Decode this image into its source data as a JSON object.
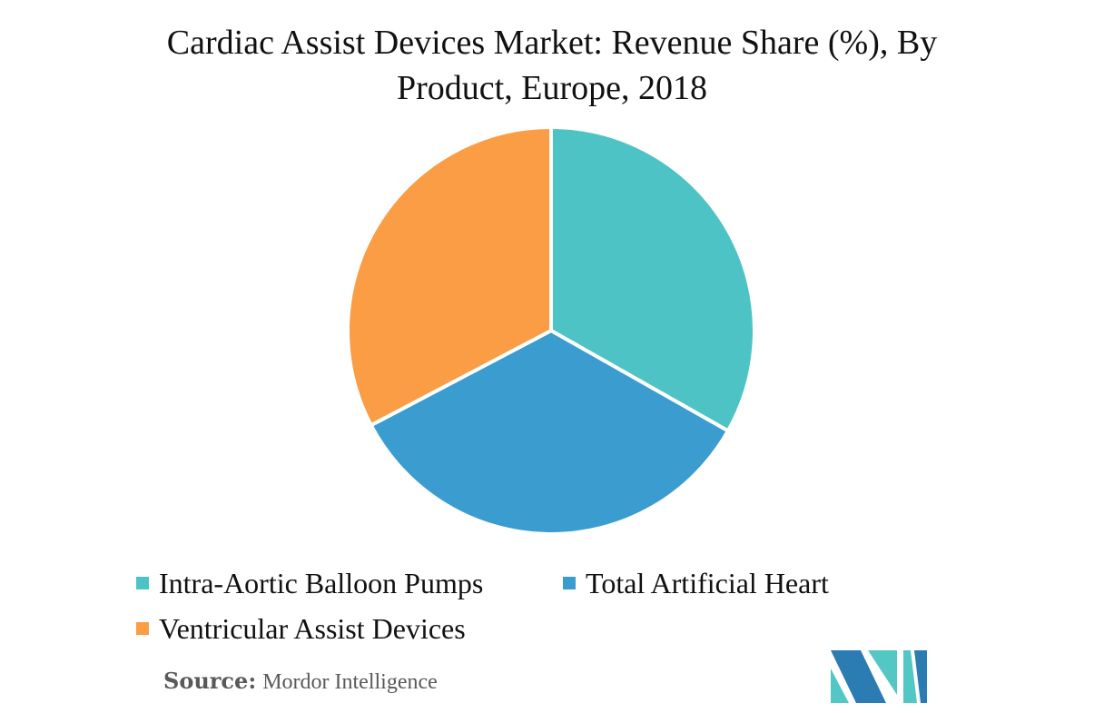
{
  "header": {
    "line1": "Cardiac Assist Devices Market: Revenue Share (%), By",
    "line2": "Product, Europe, 2018"
  },
  "chart_data": {
    "type": "pie",
    "title": "Cardiac Assist Devices Market: Revenue Share (%), By Product, Europe, 2018",
    "labels": [
      "Intra-Aortic Balloon Pumps",
      "Total Artificial Heart",
      "Ventricular Assist Devices"
    ],
    "values": [
      33.2,
      34.1,
      32.7
    ],
    "colors": [
      "#4EC3C5",
      "#3B9CD0",
      "#FA9D44"
    ],
    "start_angle_deg": 0,
    "direction": "clockwise",
    "slice_border_color": "#FFFFFF",
    "data_labels": false,
    "legend_position": "bottom-left"
  },
  "legend": {
    "items": [
      {
        "label": "Intra-Aortic Balloon Pumps"
      },
      {
        "label": "Total Artificial Heart"
      },
      {
        "label": "Ventricular Assist Devices"
      }
    ]
  },
  "source": {
    "label": "Source:",
    "text": "Mordor Intelligence"
  },
  "logo": {
    "name": "mordor-intelligence-logo",
    "blue": "#2C7CB4",
    "teal": "#53C7C4"
  }
}
